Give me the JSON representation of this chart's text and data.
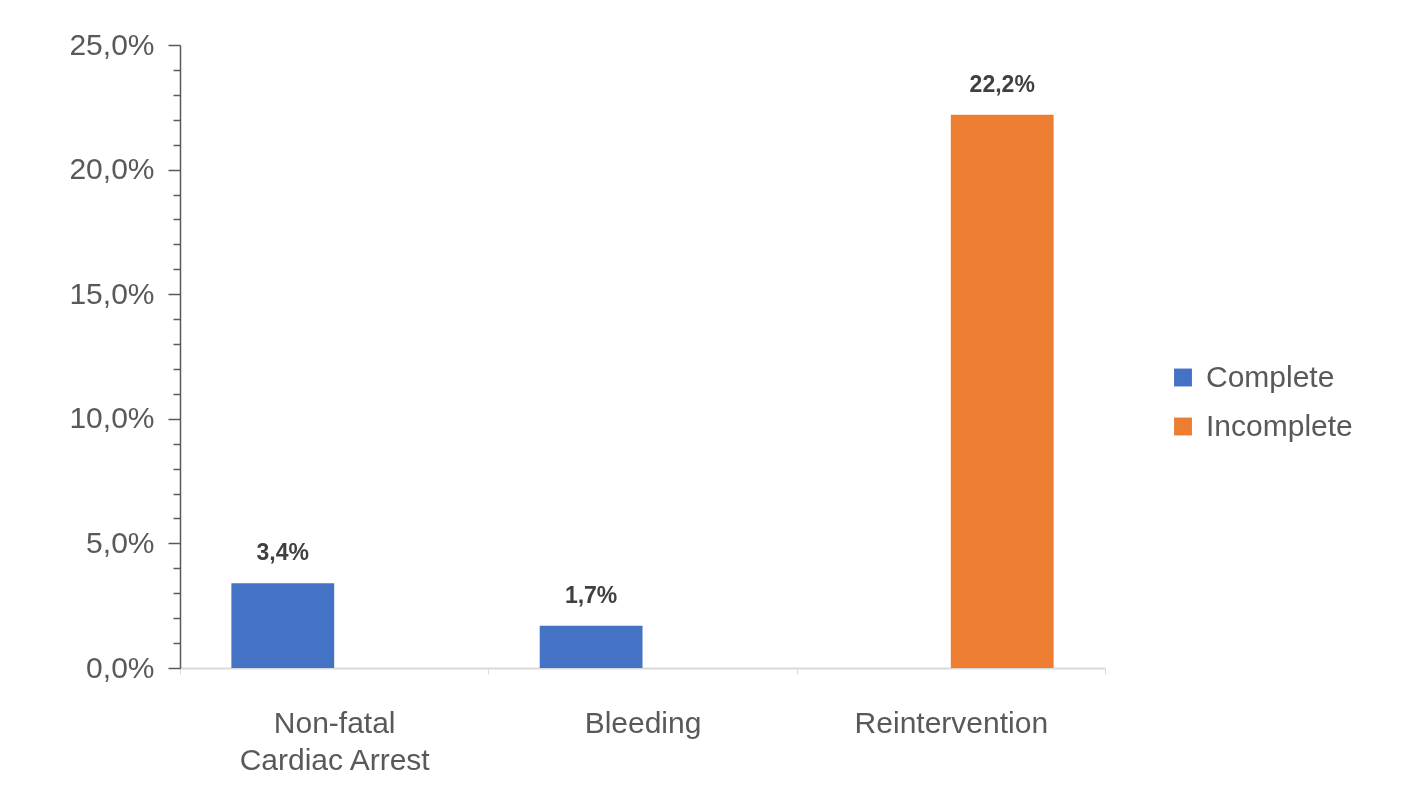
{
  "chart_data": {
    "type": "bar",
    "categories": [
      "Non-fatal Cardiac Arrest",
      "Bleeding",
      "Reintervention"
    ],
    "series": [
      {
        "name": "Complete",
        "color": "#4472c4",
        "values": [
          3.4,
          1.7,
          null
        ],
        "value_labels": [
          "3,4%",
          "1,7%",
          null
        ]
      },
      {
        "name": "Incomplete",
        "color": "#ed7d31",
        "values": [
          null,
          null,
          22.2
        ],
        "value_labels": [
          null,
          null,
          "22,2%"
        ]
      }
    ],
    "ylim": [
      0,
      25
    ],
    "yticks": [
      {
        "value": 0,
        "label": "0,0%"
      },
      {
        "value": 1,
        "label": null
      },
      {
        "value": 2,
        "label": null
      },
      {
        "value": 3,
        "label": null
      },
      {
        "value": 4,
        "label": null
      },
      {
        "value": 5,
        "label": "5,0%"
      },
      {
        "value": 6,
        "label": null
      },
      {
        "value": 7,
        "label": null
      },
      {
        "value": 8,
        "label": null
      },
      {
        "value": 9,
        "label": null
      },
      {
        "value": 10,
        "label": "10,0%"
      },
      {
        "value": 11,
        "label": null
      },
      {
        "value": 12,
        "label": null
      },
      {
        "value": 13,
        "label": null
      },
      {
        "value": 14,
        "label": null
      },
      {
        "value": 15,
        "label": "15,0%"
      },
      {
        "value": 16,
        "label": null
      },
      {
        "value": 17,
        "label": null
      },
      {
        "value": 18,
        "label": null
      },
      {
        "value": 19,
        "label": null
      },
      {
        "value": 20,
        "label": "20,0%"
      },
      {
        "value": 21,
        "label": null
      },
      {
        "value": 22,
        "label": null
      },
      {
        "value": 23,
        "label": null
      },
      {
        "value": 24,
        "label": null
      },
      {
        "value": 25,
        "label": "25,0%"
      }
    ],
    "legend": "right"
  }
}
